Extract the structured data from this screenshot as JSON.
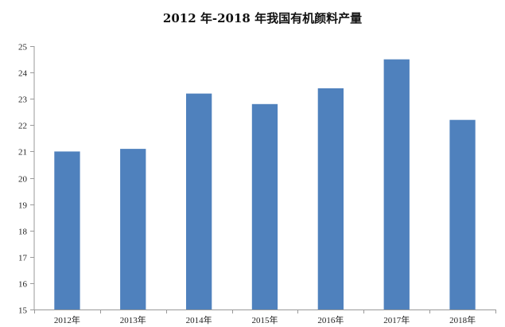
{
  "chart_data": {
    "type": "bar",
    "title": "2012 年-2018 年我国有机颜料产量",
    "categories": [
      "2012年",
      "2013年",
      "2014年",
      "2015年",
      "2016年",
      "2017年",
      "2018年"
    ],
    "values": [
      21.0,
      21.1,
      23.2,
      22.8,
      23.4,
      24.5,
      22.2
    ],
    "ylim": [
      15,
      25
    ],
    "yticks": [
      15,
      16,
      17,
      18,
      19,
      20,
      21,
      22,
      23,
      24,
      25
    ],
    "xlabel": "",
    "ylabel": "",
    "grid": false,
    "legend": "none",
    "bar_color": "#4f81bd"
  }
}
